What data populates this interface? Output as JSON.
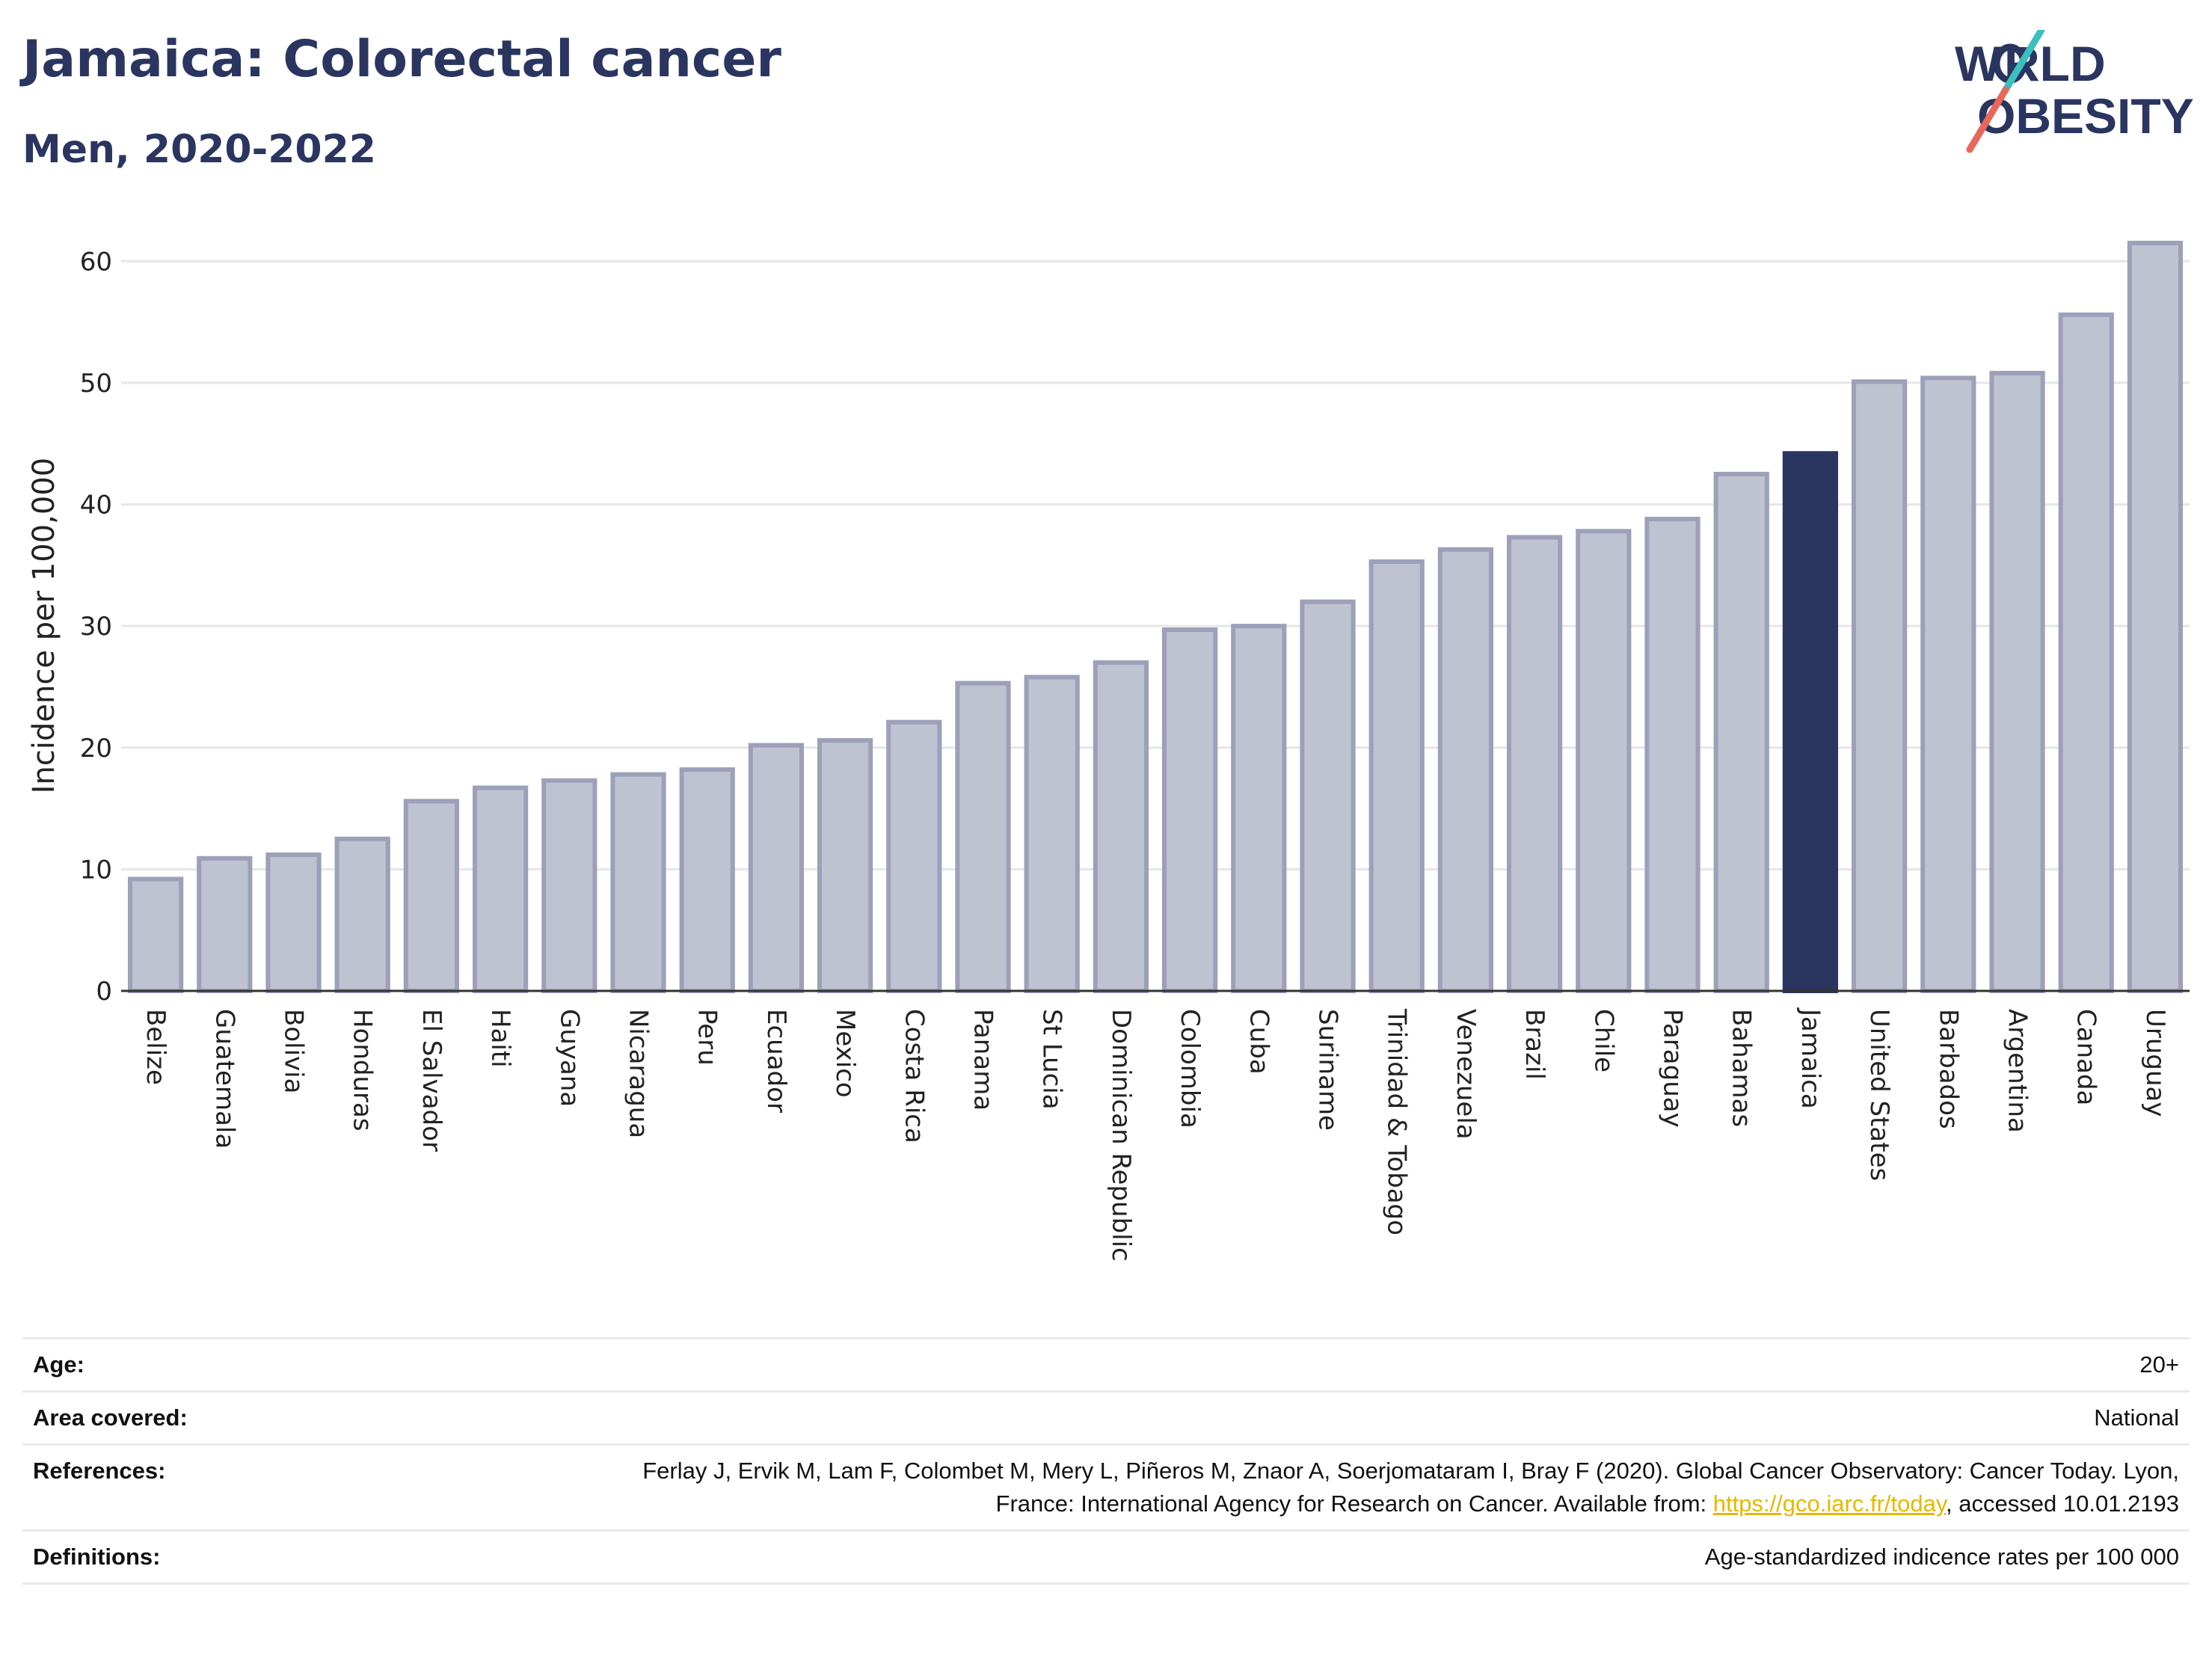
{
  "header": {
    "title": "Jamaica: Colorectal cancer",
    "subtitle": "Men, 2020-2022",
    "logo_text": "WORLD OBESITY"
  },
  "colors": {
    "bar": "#bfc2d1",
    "bar_border": "#9ca0b8",
    "highlight": "#2a3560",
    "grid": "#e6e6ea",
    "logo_teal": "#3bbfbf",
    "logo_red": "#e8675a"
  },
  "chart_data": {
    "type": "bar",
    "title": "Jamaica: Colorectal cancer",
    "subtitle": "Men, 2020-2022",
    "ylabel": "Incidence per 100,000",
    "xlabel": "",
    "ylim": [
      0,
      65
    ],
    "yticks": [
      0,
      10,
      20,
      30,
      40,
      50,
      60
    ],
    "grid": true,
    "highlight": "Jamaica",
    "categories": [
      "Belize",
      "Guatemala",
      "Bolivia",
      "Honduras",
      "El Salvador",
      "Haiti",
      "Guyana",
      "Nicaragua",
      "Peru",
      "Ecuador",
      "Mexico",
      "Costa Rica",
      "Panama",
      "St Lucia",
      "Dominican Republic",
      "Colombia",
      "Cuba",
      "Suriname",
      "Trinidad & Tobago",
      "Venezuela",
      "Brazil",
      "Chile",
      "Paraguay",
      "Bahamas",
      "Jamaica",
      "United States",
      "Barbados",
      "Argentina",
      "Canada",
      "Uruguay"
    ],
    "values": [
      9.2,
      10.9,
      11.2,
      12.5,
      15.6,
      16.7,
      17.3,
      17.8,
      18.2,
      20.2,
      20.6,
      22.1,
      25.3,
      25.8,
      27.0,
      29.7,
      30.0,
      32.0,
      35.3,
      36.3,
      37.3,
      37.8,
      38.8,
      42.5,
      44.2,
      50.1,
      50.4,
      50.8,
      55.6,
      61.5
    ]
  },
  "info": {
    "age_label": "Age:",
    "age_value": "20+",
    "area_label": "Area covered:",
    "area_value": "National",
    "references_label": "References:",
    "references_text_1": "Ferlay J, Ervik M, Lam F, Colombet M, Mery L, Piñeros M, Znaor A, Soerjomataram I, Bray F (2020). Global Cancer Observatory: Cancer Today. Lyon, France: International Agency for Research on Cancer. Available from: ",
    "references_link": "https://gco.iarc.fr/today",
    "references_text_2": ", accessed 10.01.2193",
    "definitions_label": "Definitions:",
    "definitions_value": "Age-standardized indicence rates per 100 000"
  }
}
